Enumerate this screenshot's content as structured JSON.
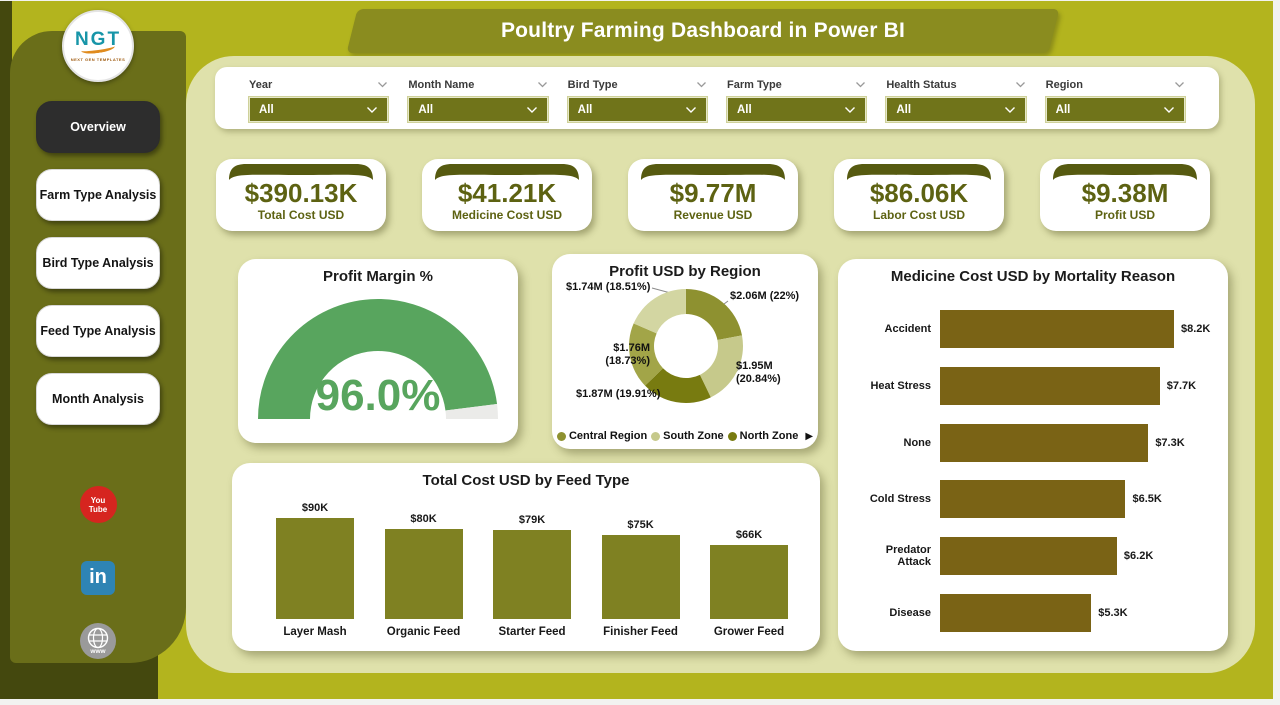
{
  "header": {
    "title": "Poultry Farming Dashboard in Power BI"
  },
  "logo": {
    "acronym": "NGT",
    "tagline": "NEXT GEN TEMPLATES"
  },
  "sidebar": {
    "items": [
      {
        "label": "Overview",
        "active": true
      },
      {
        "label": "Farm Type Analysis",
        "active": false
      },
      {
        "label": "Bird Type Analysis",
        "active": false
      },
      {
        "label": "Feed Type Analysis",
        "active": false
      },
      {
        "label": "Month Analysis",
        "active": false
      }
    ],
    "social": {
      "youtube_line1": "You",
      "youtube_line2": "Tube",
      "linkedin": "in",
      "website": "www"
    }
  },
  "filters": [
    {
      "label": "Year",
      "value": "All"
    },
    {
      "label": "Month Name",
      "value": "All"
    },
    {
      "label": "Bird Type",
      "value": "All"
    },
    {
      "label": "Farm Type",
      "value": "All"
    },
    {
      "label": "Health Status",
      "value": "All"
    },
    {
      "label": "Region",
      "value": "All"
    }
  ],
  "kpis": [
    {
      "value": "$390.13K",
      "label": "Total Cost USD"
    },
    {
      "value": "$41.21K",
      "label": "Medicine Cost USD"
    },
    {
      "value": "$9.77M",
      "label": "Revenue USD"
    },
    {
      "value": "$86.06K",
      "label": "Labor Cost USD"
    },
    {
      "value": "$9.38M",
      "label": "Profit USD"
    }
  ],
  "colors": {
    "page_bg": "#b3b41e",
    "panel_bg": "#dfe1ab",
    "sidebar_bg": "#6a6e19",
    "dark_accent": "#44480e",
    "ribbon_bg": "#8a8c1f",
    "dropdown_bg": "#70741a",
    "kpi_text": "#5d6212",
    "youtube_red": "#d6251f",
    "linkedin_blue": "#2e84b4"
  },
  "chart_data": [
    {
      "type": "gauge",
      "title": "Profit Margin %",
      "value": 96.0,
      "min": 0,
      "max": 100,
      "display": "96.0%",
      "color": "#58a55e",
      "track_color": "#ebebe9"
    },
    {
      "type": "pie",
      "title": "Profit USD by Region",
      "slices": [
        {
          "region": "Central Region",
          "label": "$2.06M (22%)",
          "value_musd": 2.06,
          "pct": 22.0,
          "color": "#8e9130"
        },
        {
          "region": "South Zone",
          "label": "$1.95M (20.84%)",
          "value_musd": 1.95,
          "pct": 20.84,
          "color": "#c6c98b"
        },
        {
          "region": "North Zone",
          "label": "$1.87M (19.91%)",
          "value_musd": 1.87,
          "pct": 19.91,
          "color": "#787b10"
        },
        {
          "label": "$1.76M (18.73%)",
          "value_musd": 1.76,
          "pct": 18.73,
          "color": "#a2a548"
        },
        {
          "label": "$1.74M (18.51%)",
          "value_musd": 1.74,
          "pct": 18.51,
          "color": "#d3d6a2"
        }
      ],
      "legend": [
        {
          "label": "Central Region"
        },
        {
          "label": "South Zone"
        },
        {
          "label": "North Zone"
        }
      ],
      "legend_overflow": "▶"
    },
    {
      "type": "bar",
      "orientation": "horizontal",
      "title": "Medicine Cost USD by Mortality Reason",
      "categories": [
        "Accident",
        "Heat Stress",
        "None",
        "Cold Stress",
        "Predator Attack",
        "Disease"
      ],
      "values": [
        8.2,
        7.7,
        7.3,
        6.5,
        6.2,
        5.3
      ],
      "labels": [
        "$8.2K",
        "$7.7K",
        "$7.3K",
        "$6.5K",
        "$6.2K",
        "$5.3K"
      ],
      "unit": "K USD",
      "bar_color": "#7a6315"
    },
    {
      "type": "bar",
      "orientation": "vertical",
      "title": "Total Cost USD by Feed Type",
      "categories": [
        "Layer Mash",
        "Organic Feed",
        "Starter Feed",
        "Finisher Feed",
        "Grower Feed"
      ],
      "values": [
        90,
        80,
        79,
        75,
        66
      ],
      "labels": [
        "$90K",
        "$80K",
        "$79K",
        "$75K",
        "$66K"
      ],
      "unit": "K USD",
      "bar_color": "#7f8122"
    }
  ]
}
